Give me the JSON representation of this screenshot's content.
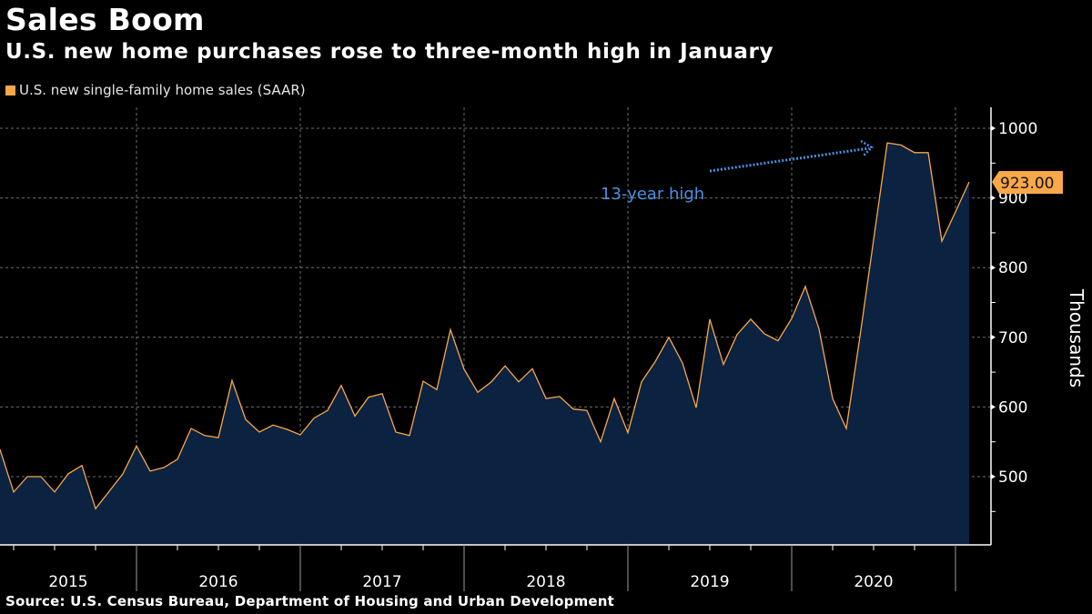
{
  "header": {
    "title": "Sales Boom",
    "subtitle": "U.S. new home purchases rose to three-month high in January"
  },
  "legend": {
    "label": "U.S. new single-family home sales (SAAR)",
    "color": "#f9a849"
  },
  "source": "Source: U.S. Census Bureau, Department of Housing and Urban Development",
  "colors": {
    "line": "#f9a849",
    "area": "#0b2240",
    "grid": "#8a8a8a",
    "annotation": "#4a90e2",
    "badge": "#f9a849"
  },
  "chart_data": {
    "type": "area",
    "title": "Sales Boom",
    "subtitle": "U.S. new home purchases rose to three-month high in January",
    "xlabel": "",
    "ylabel": "Thousands",
    "ylim": [
      400,
      1030
    ],
    "yticks": [
      500,
      600,
      700,
      800,
      900,
      1000
    ],
    "ytick_labels": [
      "500",
      "600",
      "700",
      "800",
      "900",
      "1000"
    ],
    "xticks": [
      "2015",
      "2016",
      "2017",
      "2018",
      "2019",
      "2020"
    ],
    "grid": true,
    "legend_position": "top-left",
    "y_axis_side": "right",
    "series": [
      {
        "name": "U.S. new single-family home sales (SAAR)",
        "start": "2015-02",
        "frequency": "monthly",
        "values": [
          539,
          478,
          500,
          500,
          478,
          504,
          516,
          454,
          479,
          504,
          544,
          508,
          513,
          525,
          569,
          559,
          556,
          638,
          582,
          564,
          574,
          568,
          560,
          584,
          595,
          631,
          587,
          614,
          619,
          564,
          559,
          637,
          625,
          711,
          654,
          621,
          636,
          659,
          636,
          655,
          612,
          615,
          597,
          595,
          550,
          612,
          563,
          636,
          665,
          700,
          663,
          599,
          726,
          661,
          704,
          726,
          705,
          695,
          727,
          773,
          712,
          612,
          569,
          701,
          840,
          979,
          976,
          965,
          965,
          838,
          880,
          923
        ]
      }
    ],
    "last_value_label": "923.00",
    "annotations": [
      {
        "text": "13-year high",
        "points_to": "2020-07",
        "value": 979
      }
    ]
  }
}
